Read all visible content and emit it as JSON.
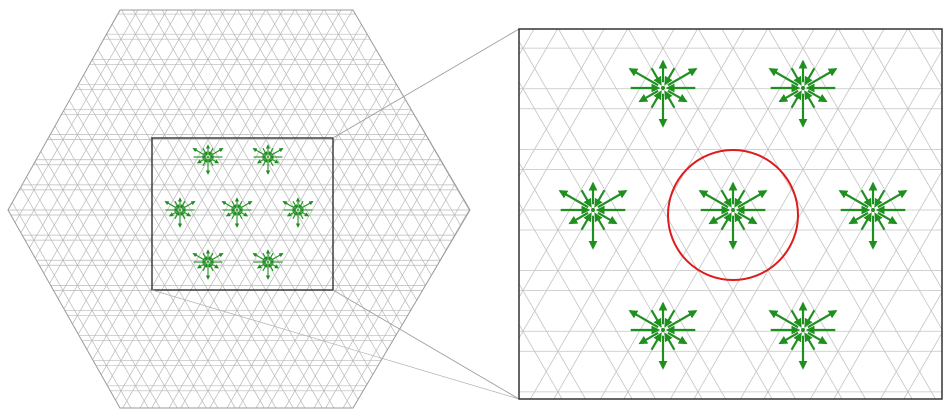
{
  "figure": {
    "description_free": true,
    "colors": {
      "background": "#ffffff",
      "lattice_lines": "#bdbdbd",
      "zoom_frame": "#333333",
      "connector_lines": "#9e9e9e",
      "arrows": "#1f8f1f",
      "highlight_circle": "#dd1c1c"
    },
    "overview": {
      "shape": "hexagon",
      "vertex_sites": 7,
      "arrows_per_site": 12
    },
    "zoom": {
      "vertex_sites": 7,
      "highlighted_site": "center",
      "arrows_per_site": 12
    }
  }
}
